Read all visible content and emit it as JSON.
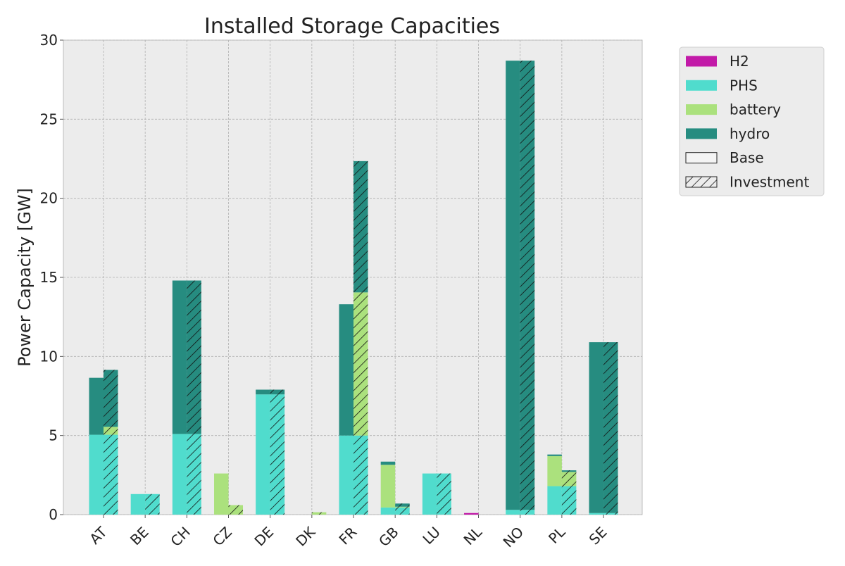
{
  "chart_data": {
    "type": "bar",
    "title": "Installed Storage Capacities",
    "xlabel": "",
    "ylabel": "Power Capacity [GW]",
    "ylim": [
      0,
      30
    ],
    "yticks": [
      0,
      5,
      10,
      15,
      20,
      25,
      30
    ],
    "grid": true,
    "legend_position": "outside top-right",
    "categories": [
      "AT",
      "BE",
      "CH",
      "CZ",
      "DE",
      "DK",
      "FR",
      "GB",
      "LU",
      "NL",
      "NO",
      "PL",
      "SE"
    ],
    "stack_order": [
      "PHS",
      "battery",
      "hydro",
      "H2"
    ],
    "series": [
      {
        "name": "H2",
        "color": "#c21aa8",
        "base": [
          0,
          0,
          0,
          0,
          0,
          0,
          0,
          0,
          0,
          0.1,
          0,
          0,
          0
        ],
        "investment": [
          0,
          0,
          0,
          0,
          0,
          0,
          0,
          0,
          0,
          0,
          0,
          0,
          0
        ]
      },
      {
        "name": "PHS",
        "color": "#50dccd",
        "base": [
          5.05,
          1.3,
          5.1,
          0,
          7.6,
          0,
          5.0,
          0.45,
          2.6,
          0,
          0.3,
          1.8,
          0.1
        ],
        "investment": [
          5.05,
          1.3,
          5.1,
          0,
          7.6,
          0,
          5.0,
          0.45,
          2.6,
          0,
          0.3,
          1.8,
          0.1
        ]
      },
      {
        "name": "battery",
        "color": "#abe17d",
        "base": [
          0,
          0,
          0,
          2.6,
          0,
          0,
          0,
          2.7,
          0,
          0,
          0,
          1.9,
          0
        ],
        "investment": [
          0.5,
          0,
          0,
          0.6,
          0,
          0.15,
          9.05,
          0.05,
          0,
          0,
          0,
          0.9,
          0
        ]
      },
      {
        "name": "hydro",
        "color": "#268c80",
        "base": [
          3.6,
          0,
          9.7,
          0,
          0.3,
          0,
          8.3,
          0.2,
          0,
          0,
          28.4,
          0.1,
          10.8
        ],
        "investment": [
          3.6,
          0,
          9.7,
          0,
          0.3,
          0,
          8.3,
          0.2,
          0,
          0,
          28.4,
          0.1,
          10.8
        ]
      }
    ],
    "legend": [
      "H2",
      "PHS",
      "battery",
      "hydro",
      "Base",
      "Investment"
    ]
  }
}
